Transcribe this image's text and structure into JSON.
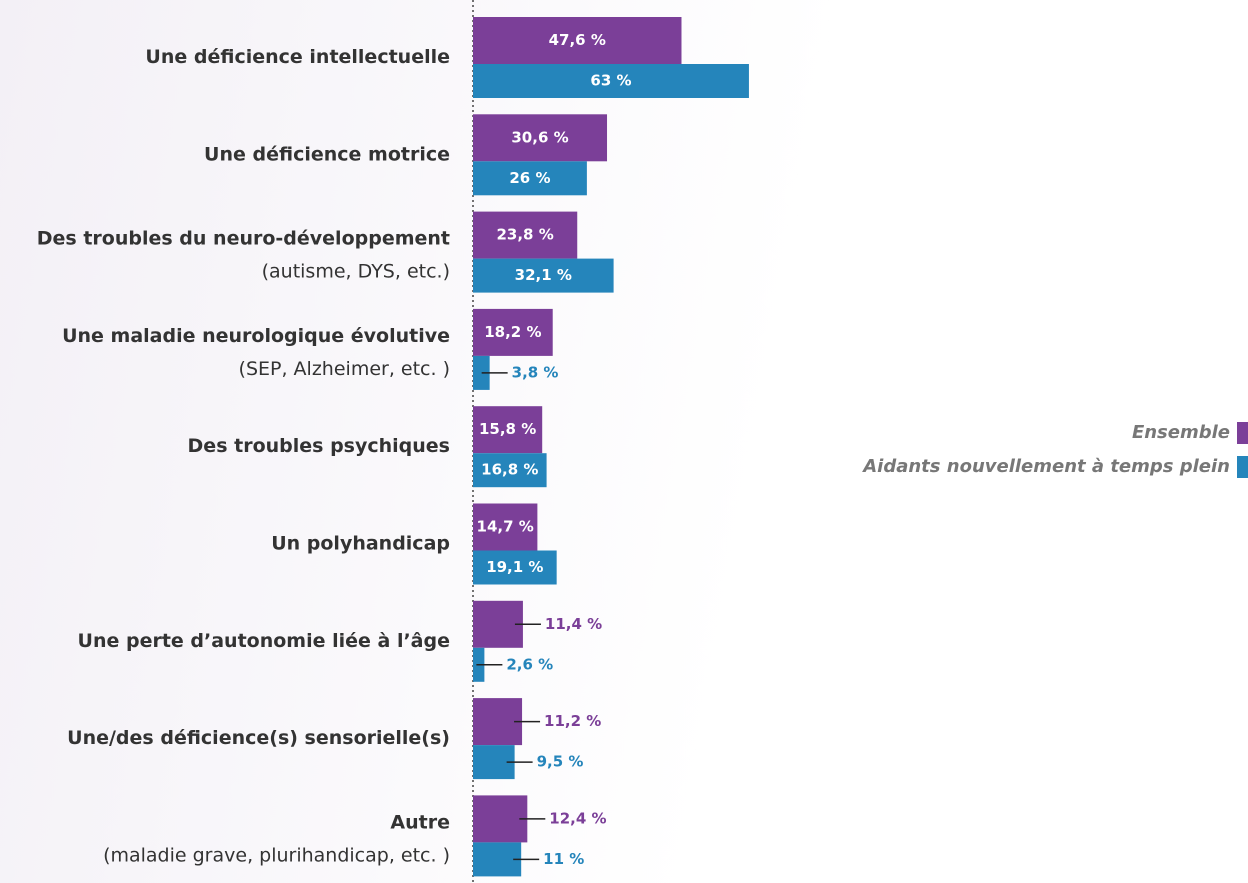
{
  "chart_data": {
    "type": "bar",
    "orientation": "horizontal",
    "categories": [
      "Une déficience intellectuelle",
      "Une déficience motrice",
      "Des troubles du neuro-développement",
      "Une maladie neurologique évolutive",
      "Des troubles psychiques",
      "Un polyhandicap",
      "Une perte d’autonomie liée à l’âge",
      "Une/des déficience(s) sensorielle(s)",
      "Autre"
    ],
    "category_details": [
      null,
      null,
      "(autisme, DYS, etc.)",
      "(SEP, Alzheimer, etc. )",
      null,
      null,
      null,
      null,
      "(maladie grave, plurihandicap, etc. )"
    ],
    "series": [
      {
        "name": "Ensemble",
        "color": "#7b3f98",
        "values": [
          47.6,
          30.6,
          23.8,
          18.2,
          15.8,
          14.7,
          11.4,
          11.2,
          12.4
        ],
        "value_labels": [
          "47,6 %",
          "30,6 %",
          "23,8 %",
          "18,2 %",
          "15,8 %",
          "14,7 %",
          "11,4 %",
          "11,2 %",
          "12,4 %"
        ]
      },
      {
        "name": "Aidants nouvellement à temps plein",
        "color": "#2585bb",
        "values": [
          63,
          26,
          32.1,
          3.8,
          16.8,
          19.1,
          2.6,
          9.5,
          11
        ],
        "value_labels": [
          "63 %",
          "26 %",
          "32,1 %",
          "3,8 %",
          "16,8 %",
          "19,1 %",
          "2,6 %",
          "9,5 %",
          "11 %"
        ]
      }
    ],
    "xlim": [
      0,
      100
    ],
    "legend": "right"
  }
}
